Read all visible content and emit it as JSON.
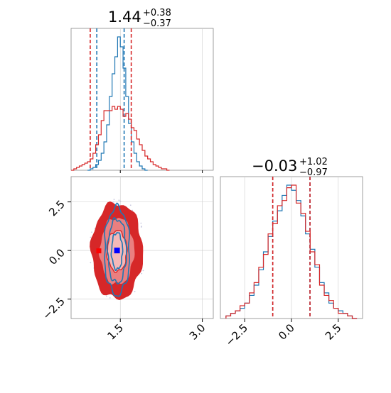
{
  "chart_data": [
    {
      "panel": "top-left",
      "type": "histogram",
      "parameter_summary": {
        "median": "1.44",
        "upper": "+0.38",
        "lower": "−0.37"
      },
      "xlim": [
        0.6,
        3.2
      ],
      "grid": true,
      "series": [
        {
          "color": "#1f77b4",
          "style": "step",
          "bin_edges": [
            0.9,
            0.95,
            1.0,
            1.05,
            1.1,
            1.15,
            1.2,
            1.25,
            1.3,
            1.35,
            1.4,
            1.45,
            1.5,
            1.55,
            1.6,
            1.65,
            1.7,
            1.75,
            1.8,
            1.85,
            1.9,
            1.95,
            2.0
          ],
          "counts": [
            0,
            1,
            2,
            4,
            7,
            12,
            20,
            32,
            52,
            68,
            80,
            94,
            87,
            72,
            52,
            33,
            20,
            12,
            6,
            3,
            1,
            0
          ],
          "quantile_lines": [
            1.07,
            1.57
          ]
        },
        {
          "color": "#d62728",
          "style": "step",
          "bin_edges": [
            0.6,
            0.65,
            0.7,
            0.75,
            0.8,
            0.85,
            0.9,
            0.95,
            1.0,
            1.05,
            1.1,
            1.15,
            1.2,
            1.25,
            1.3,
            1.35,
            1.4,
            1.45,
            1.5,
            1.55,
            1.6,
            1.65,
            1.7,
            1.75,
            1.8,
            1.85,
            1.9,
            1.95,
            2.0,
            2.05,
            2.1,
            2.15,
            2.2,
            2.25,
            2.3,
            2.35,
            2.4
          ],
          "counts": [
            0,
            1,
            2,
            3,
            4,
            5,
            6,
            8,
            12,
            18,
            25,
            35,
            42,
            42,
            42,
            45,
            43,
            45,
            43,
            38,
            40,
            36,
            30,
            28,
            22,
            18,
            14,
            10,
            8,
            6,
            4,
            3,
            2,
            1,
            1,
            0
          ],
          "quantile_lines": [
            0.95,
            1.7
          ]
        }
      ]
    },
    {
      "panel": "bottom-right",
      "type": "histogram",
      "parameter_summary": {
        "median": "−0.03",
        "upper": "+1.02",
        "lower": "−0.97"
      },
      "xlim": [
        -3.8,
        3.8
      ],
      "xticks": [
        -2.5,
        0.0,
        2.5
      ],
      "xtick_labels": [
        "−2.5",
        "0.0",
        "2.5"
      ],
      "grid": true,
      "series": [
        {
          "color": "#1f77b4",
          "style": "step",
          "bin_edges": [
            -3.5,
            -3.25,
            -3.0,
            -2.75,
            -2.5,
            -2.25,
            -2.0,
            -1.75,
            -1.5,
            -1.25,
            -1.0,
            -0.75,
            -0.5,
            -0.25,
            0.0,
            0.25,
            0.5,
            0.75,
            1.0,
            1.25,
            1.5,
            1.75,
            2.0,
            2.25,
            2.5,
            2.75,
            3.0,
            3.25,
            3.5
          ],
          "counts": [
            1,
            2,
            3,
            4,
            6,
            9,
            13,
            19,
            26,
            32,
            38,
            42,
            48,
            52,
            50,
            46,
            40,
            33,
            27,
            20,
            14,
            10,
            6,
            4,
            3,
            2,
            1,
            0
          ],
          "quantile_lines": [
            -1.0,
            0.99
          ]
        },
        {
          "color": "#d62728",
          "style": "step",
          "bin_edges": [
            -3.5,
            -3.25,
            -3.0,
            -2.75,
            -2.5,
            -2.25,
            -2.0,
            -1.75,
            -1.5,
            -1.25,
            -1.0,
            -0.75,
            -0.5,
            -0.25,
            0.0,
            0.25,
            0.5,
            0.75,
            1.0,
            1.25,
            1.5,
            1.75,
            2.0,
            2.25,
            2.5,
            2.75,
            3.0,
            3.25,
            3.5
          ],
          "counts": [
            1,
            2,
            3,
            5,
            6,
            10,
            14,
            20,
            25,
            33,
            37,
            44,
            46,
            51,
            52,
            45,
            41,
            34,
            26,
            21,
            13,
            9,
            7,
            4,
            2,
            2,
            1,
            0
          ],
          "quantile_lines": [
            -1.0,
            0.99
          ]
        }
      ]
    },
    {
      "panel": "bottom-left",
      "type": "contour",
      "xlim": [
        0.6,
        3.2
      ],
      "ylim": [
        -3.5,
        3.8
      ],
      "xticks": [
        1.5,
        3.0
      ],
      "xtick_labels": [
        "1.5",
        "3.0"
      ],
      "yticks": [
        -2.5,
        0.0,
        2.5
      ],
      "ytick_labels": [
        "−2.5",
        "0.0",
        "2.5"
      ],
      "grid": true,
      "series": [
        {
          "color": "#d62728",
          "center": [
            1.44,
            -0.03
          ],
          "levels": [
            {
              "sx": 0.18,
              "sy": 1.05
            },
            {
              "sx": 0.32,
              "sy": 1.75
            },
            {
              "sx": 0.46,
              "sy": 2.45
            }
          ],
          "peak": [
            1.1,
            0.0
          ]
        },
        {
          "color": "#1f77b4",
          "center": [
            1.44,
            -0.03
          ],
          "levels": [
            {
              "sx": 0.1,
              "sy": 0.95
            },
            {
              "sx": 0.17,
              "sy": 1.65
            },
            {
              "sx": 0.23,
              "sy": 2.25
            }
          ],
          "peak": [
            1.44,
            0.0
          ]
        }
      ]
    }
  ]
}
